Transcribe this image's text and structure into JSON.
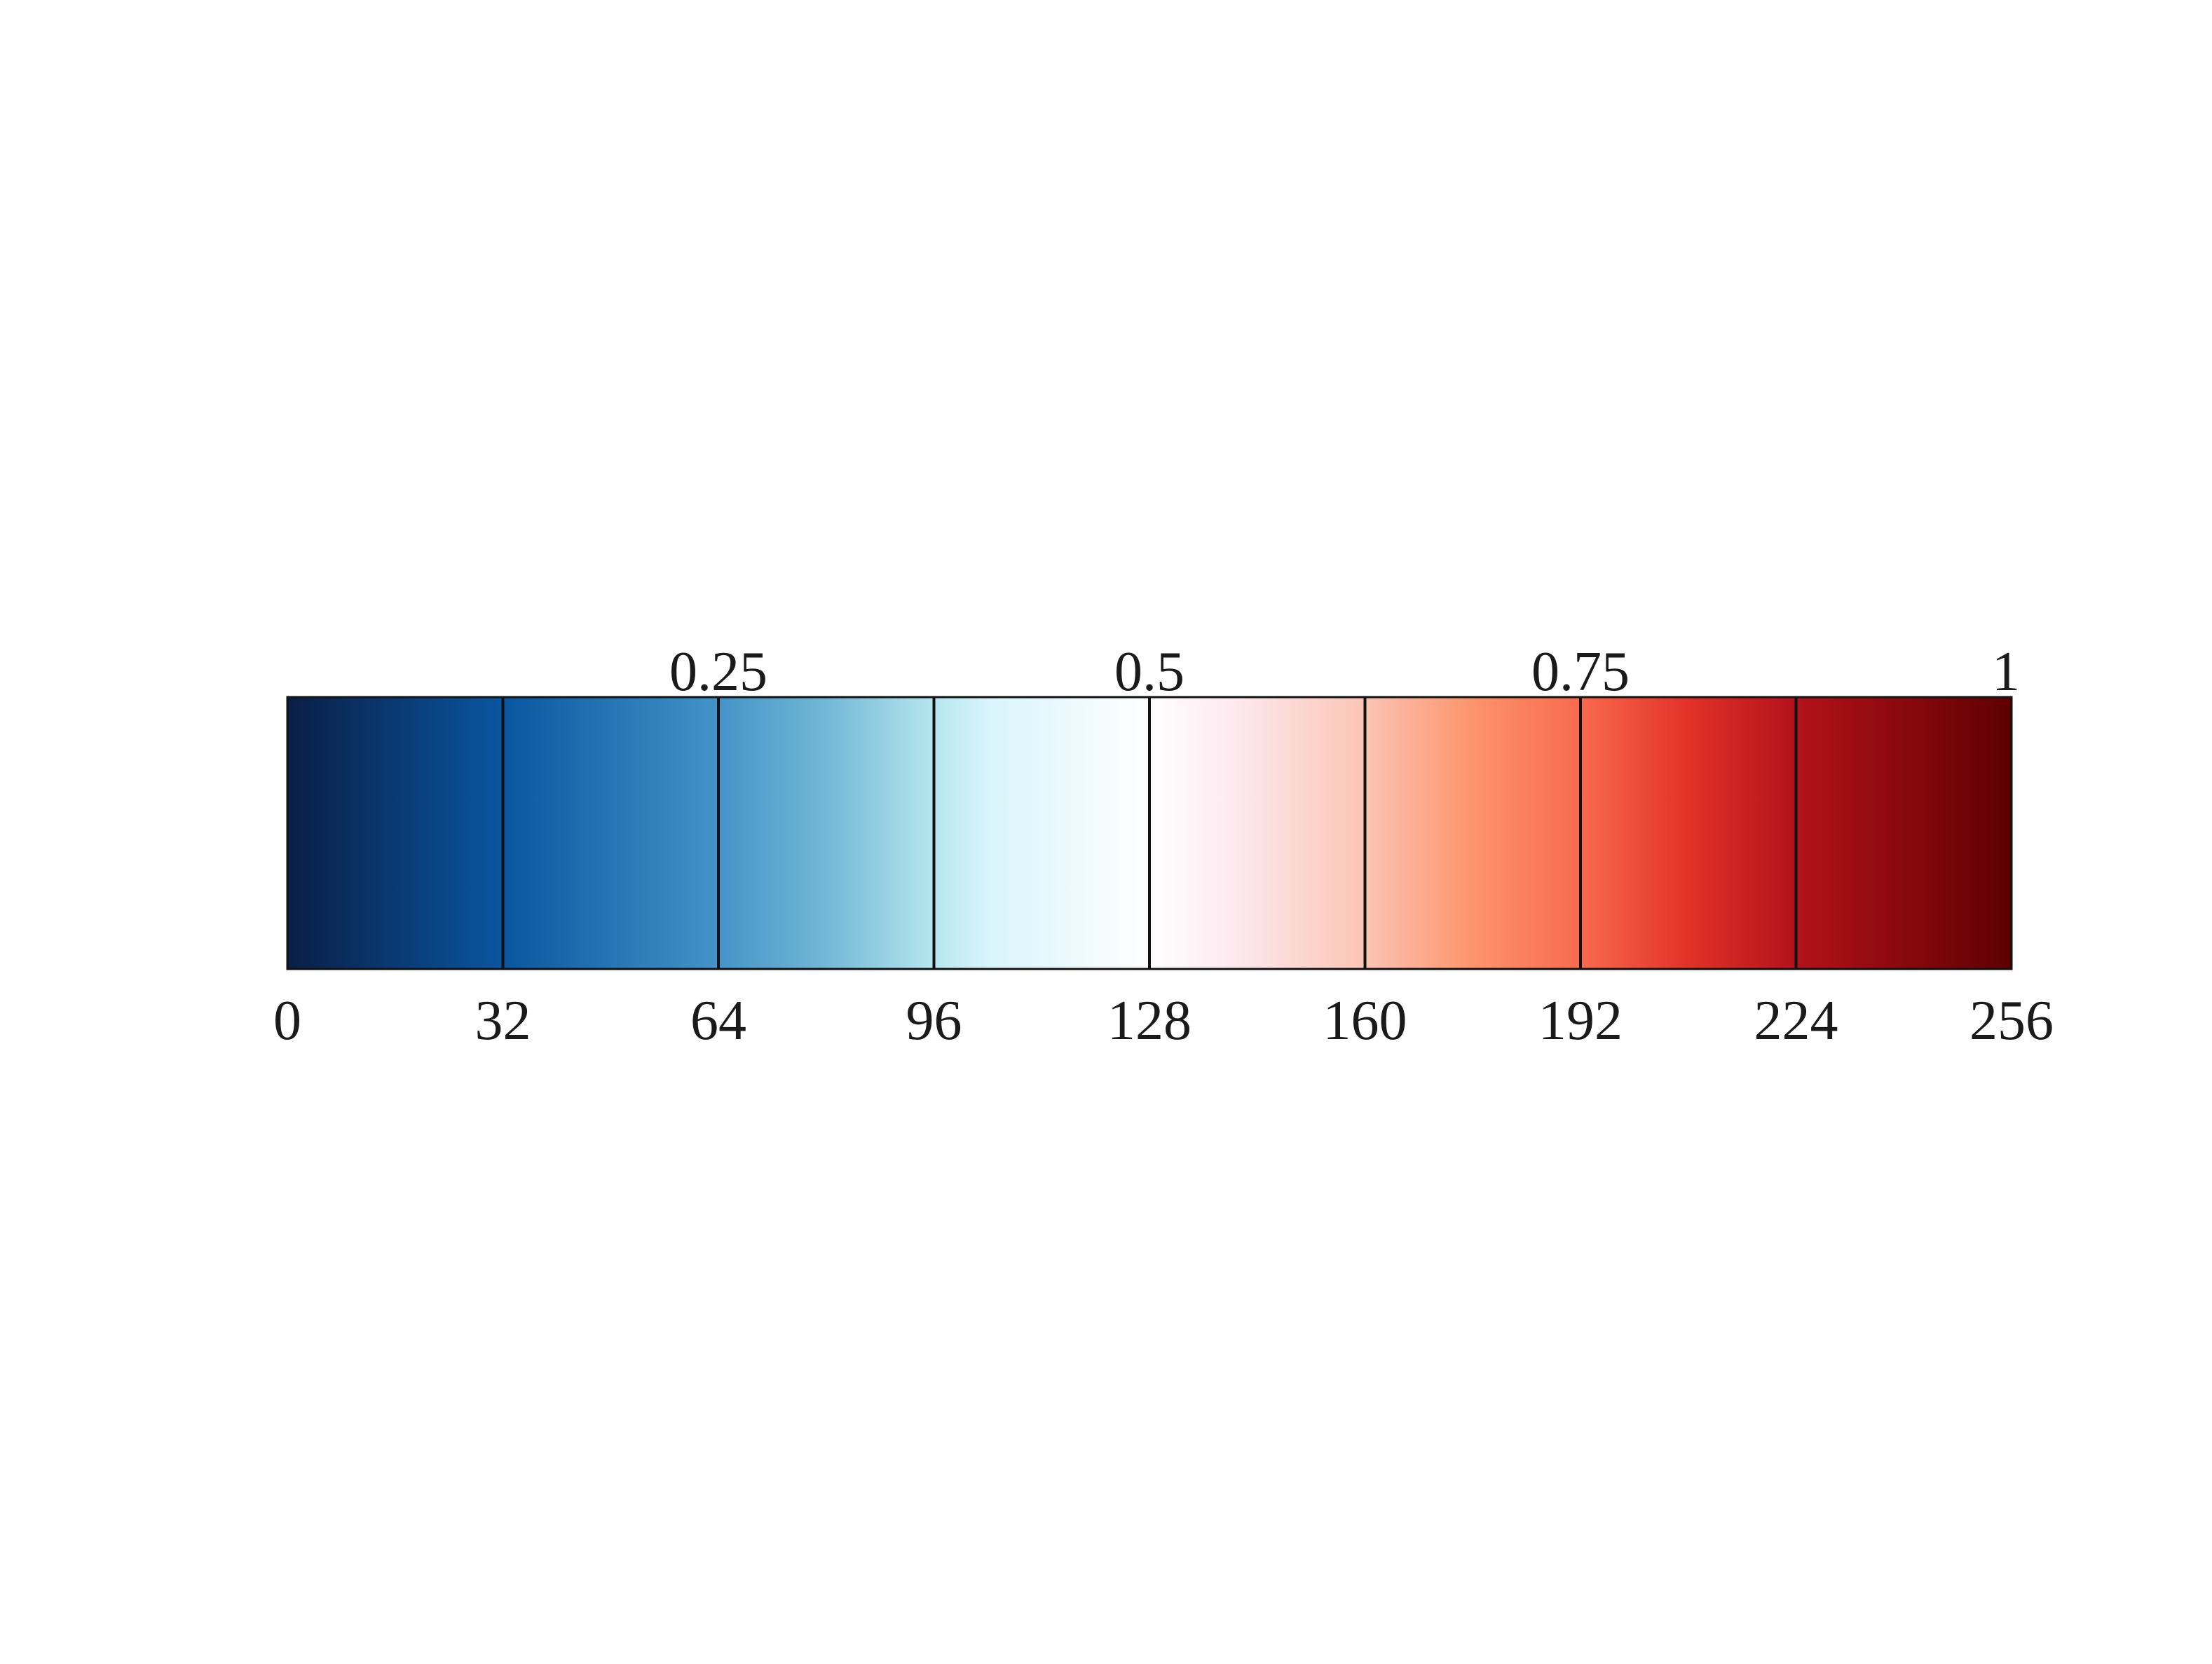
{
  "chart_data": {
    "type": "heatmap",
    "title": "",
    "xlabel": "",
    "ylabel": "",
    "xlim": [
      0,
      256
    ],
    "grid": false,
    "legend": "none",
    "colormap_stops": [
      {
        "value": 0,
        "color": "#0a1e46"
      },
      {
        "value": 32,
        "color": "#0a56a0"
      },
      {
        "value": 64,
        "color": "#4493c8"
      },
      {
        "value": 80,
        "color": "#72b8d6"
      },
      {
        "value": 96,
        "color": "#b6e6ee"
      },
      {
        "value": 104,
        "color": "#d8f4fb"
      },
      {
        "value": 128,
        "color": "#ffffff"
      },
      {
        "value": 140,
        "color": "#fdeaf0"
      },
      {
        "value": 160,
        "color": "#fbc4b4"
      },
      {
        "value": 176,
        "color": "#fc946c"
      },
      {
        "value": 192,
        "color": "#f86a4e"
      },
      {
        "value": 208,
        "color": "#e23228"
      },
      {
        "value": 224,
        "color": "#b3121a"
      },
      {
        "value": 256,
        "color": "#5e0000"
      }
    ],
    "bottom_ticks": [
      {
        "value": 0,
        "label": "0"
      },
      {
        "value": 32,
        "label": "32"
      },
      {
        "value": 64,
        "label": "64"
      },
      {
        "value": 96,
        "label": "96"
      },
      {
        "value": 128,
        "label": "128"
      },
      {
        "value": 160,
        "label": "160"
      },
      {
        "value": 192,
        "label": "192"
      },
      {
        "value": 224,
        "label": "224"
      },
      {
        "value": 256,
        "label": "256"
      }
    ],
    "top_ticks": [
      {
        "value": 64,
        "label": "0.25"
      },
      {
        "value": 128,
        "label": "0.5"
      },
      {
        "value": 192,
        "label": "0.75"
      },
      {
        "value": 256,
        "label": "1"
      }
    ],
    "divider_lines": [
      32,
      64,
      96,
      128,
      160,
      192,
      224
    ]
  }
}
